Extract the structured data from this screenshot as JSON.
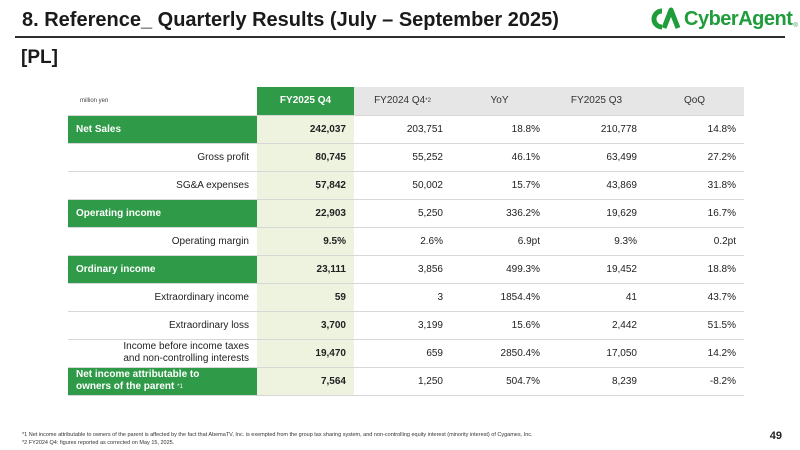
{
  "header": {
    "title": "8.  Reference_ Quarterly Results (July – September 2025)",
    "section": "[PL]",
    "logo_text": "CyberAgent",
    "logo_reg": "®",
    "brand_color": "#1f9d3a"
  },
  "table": {
    "unit": "million yen",
    "columns": {
      "c1": "FY2025 Q4",
      "c2": "FY2024 Q4",
      "c2_note": "*2",
      "c3": "YoY",
      "c4": "FY2025 Q3",
      "c5": "QoQ"
    },
    "rows": [
      {
        "label": "Net Sales",
        "c1": "242,037",
        "c2": "203,751",
        "c3": "18.8%",
        "c4": "210,778",
        "c5": "14.8%"
      },
      {
        "label": "Gross profit",
        "c1": "80,745",
        "c2": "55,252",
        "c3": "46.1%",
        "c4": "63,499",
        "c5": "27.2%"
      },
      {
        "label": "SG&A expenses",
        "c1": "57,842",
        "c2": "50,002",
        "c3": "15.7%",
        "c4": "43,869",
        "c5": "31.8%"
      },
      {
        "label": "Operating income",
        "c1": "22,903",
        "c2": "5,250",
        "c3": "336.2%",
        "c4": "19,629",
        "c5": "16.7%"
      },
      {
        "label": "Operating margin",
        "c1": "9.5%",
        "c2": "2.6%",
        "c3": "6.9pt",
        "c4": "9.3%",
        "c5": "0.2pt"
      },
      {
        "label": "Ordinary income",
        "c1": "23,111",
        "c2": "3,856",
        "c3": "499.3%",
        "c4": "19,452",
        "c5": "18.8%"
      },
      {
        "label": "Extraordinary income",
        "c1": "59",
        "c2": "3",
        "c3": "1854.4%",
        "c4": "41",
        "c5": "43.7%"
      },
      {
        "label": "Extraordinary loss",
        "c1": "3,700",
        "c2": "3,199",
        "c3": "15.6%",
        "c4": "2,442",
        "c5": "51.5%"
      },
      {
        "label_line1": "Income before income taxes",
        "label_line2": "and non-controlling interests",
        "c1": "19,470",
        "c2": "659",
        "c3": "2850.4%",
        "c4": "17,050",
        "c5": "14.2%"
      },
      {
        "label_line1": "Net income attributable to",
        "label_line2": "owners of the parent",
        "label_note": "*1",
        "c1": "7,564",
        "c2": "1,250",
        "c3": "504.7%",
        "c4": "8,239",
        "c5": "-8.2%"
      }
    ]
  },
  "footnotes": {
    "n1": "*1  Net income attributable to owners of the parent is affected by the fact that AbemaTV, Inc. is exempted from the group tax sharing system, and non-controlling equity interest (minority interest) of Cygames, Inc.",
    "n2": "*2  FY2024 Q4: figures reported as corrected on May 15, 2025."
  },
  "page_number": "49"
}
